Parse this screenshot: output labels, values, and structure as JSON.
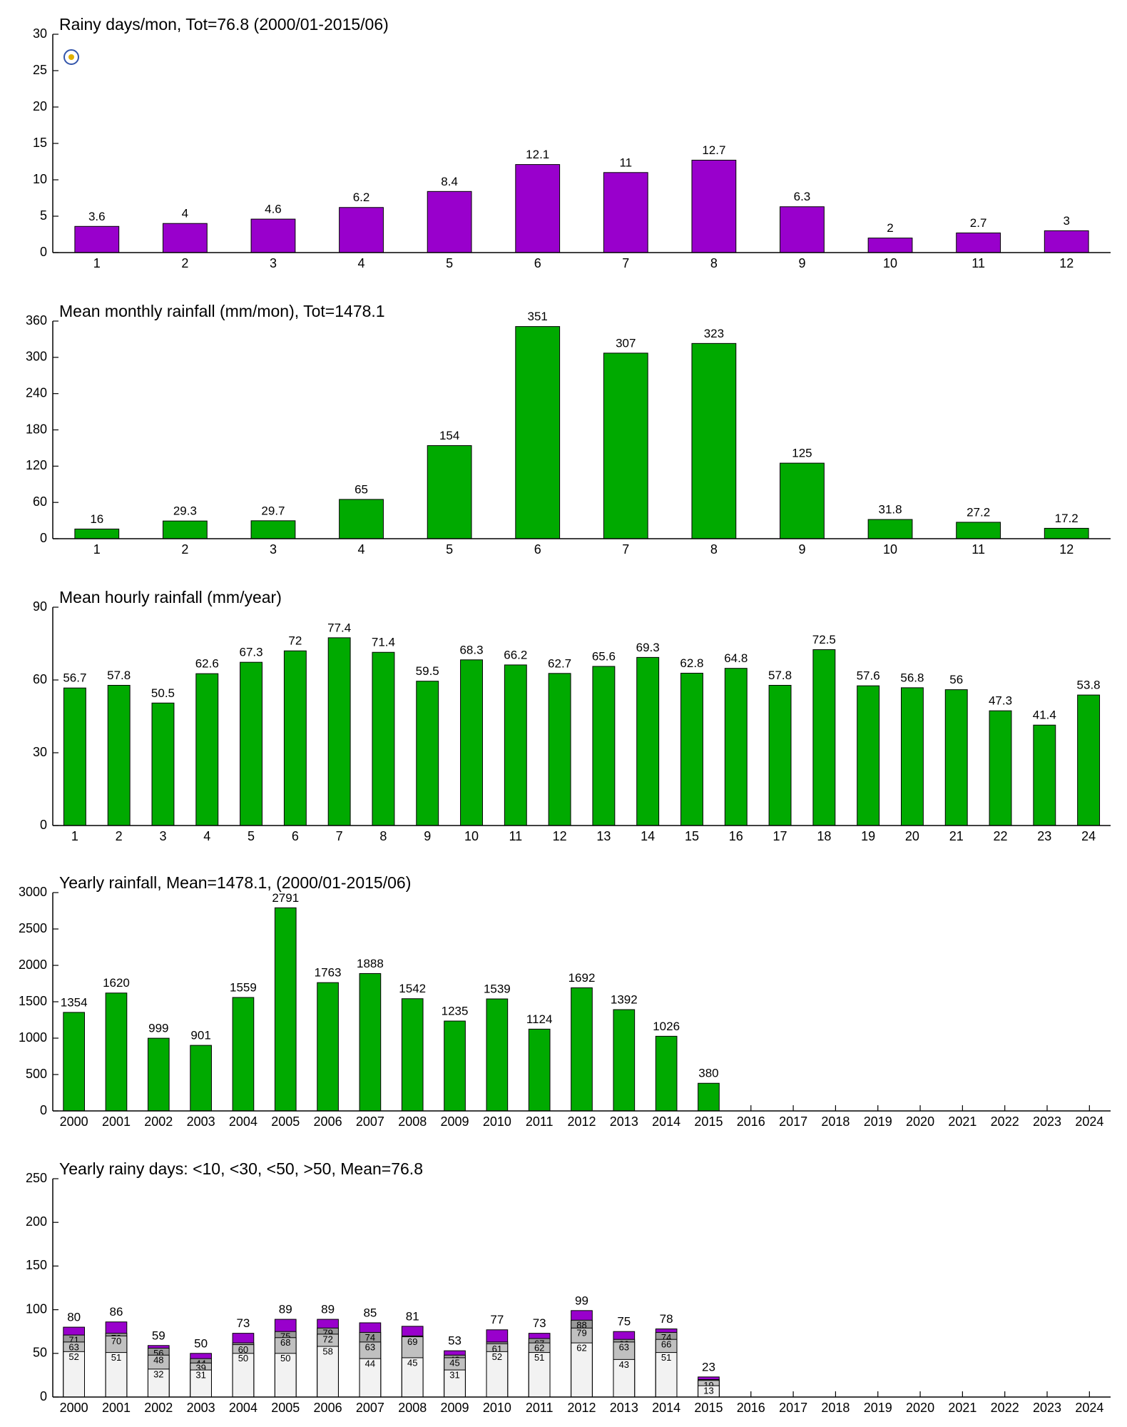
{
  "chart_data": [
    {
      "type": "bar",
      "title": "Rainy days/mon, Tot=76.8 (2000/01-2015/06)",
      "categories": [
        "1",
        "2",
        "3",
        "4",
        "5",
        "6",
        "7",
        "8",
        "9",
        "10",
        "11",
        "12"
      ],
      "values": [
        3.6,
        4,
        4.6,
        6.2,
        8.4,
        12.1,
        11,
        12.7,
        6.3,
        2,
        2.7,
        3
      ],
      "color": "#9900cc",
      "ylim": [
        0,
        30
      ],
      "yticks": [
        0,
        5,
        10,
        15,
        20,
        25,
        30
      ]
    },
    {
      "type": "bar",
      "title": "Mean monthly rainfall (mm/mon), Tot=1478.1",
      "categories": [
        "1",
        "2",
        "3",
        "4",
        "5",
        "6",
        "7",
        "8",
        "9",
        "10",
        "11",
        "12"
      ],
      "values": [
        16,
        29.3,
        29.7,
        65,
        154,
        351,
        307,
        323,
        125,
        31.8,
        27.2,
        17.2
      ],
      "color": "#00aa00",
      "ylim": [
        0,
        360
      ],
      "yticks": [
        0,
        60,
        120,
        180,
        240,
        300,
        360
      ]
    },
    {
      "type": "bar",
      "title": "Mean hourly rainfall (mm/year)",
      "categories": [
        "1",
        "2",
        "3",
        "4",
        "5",
        "6",
        "7",
        "8",
        "9",
        "10",
        "11",
        "12",
        "13",
        "14",
        "15",
        "16",
        "17",
        "18",
        "19",
        "20",
        "21",
        "22",
        "23",
        "24"
      ],
      "values": [
        56.7,
        57.8,
        50.5,
        62.6,
        67.3,
        72,
        77.4,
        71.4,
        59.5,
        68.3,
        66.2,
        62.7,
        65.6,
        69.3,
        62.8,
        64.8,
        57.8,
        72.5,
        57.6,
        56.8,
        56,
        47.3,
        41.4,
        53.8
      ],
      "color": "#00aa00",
      "ylim": [
        0,
        90
      ],
      "yticks": [
        0,
        30,
        60,
        90
      ]
    },
    {
      "type": "bar",
      "title": "Yearly rainfall, Mean=1478.1, (2000/01-2015/06)",
      "categories": [
        "2000",
        "2001",
        "2002",
        "2003",
        "2004",
        "2005",
        "2006",
        "2007",
        "2008",
        "2009",
        "2010",
        "2011",
        "2012",
        "2013",
        "2014",
        "2015",
        "2016",
        "2017",
        "2018",
        "2019",
        "2020",
        "2021",
        "2022",
        "2023",
        "2024"
      ],
      "values": [
        1354,
        1620,
        999,
        901,
        1559,
        2791,
        1763,
        1888,
        1542,
        1235,
        1539,
        1124,
        1692,
        1392,
        1026,
        380,
        null,
        null,
        null,
        null,
        null,
        null,
        null,
        null,
        null
      ],
      "color": "#00aa00",
      "ylim": [
        0,
        3000
      ],
      "yticks": [
        0,
        500,
        1000,
        1500,
        2000,
        2500,
        3000
      ]
    },
    {
      "type": "overlap",
      "title": "Yearly rainy days: <10, <30, <50, >50, Mean=76.8",
      "categories": [
        "2000",
        "2001",
        "2002",
        "2003",
        "2004",
        "2005",
        "2006",
        "2007",
        "2008",
        "2009",
        "2010",
        "2011",
        "2012",
        "2013",
        "2014",
        "2015",
        "2016",
        "2017",
        "2018",
        "2019",
        "2020",
        "2021",
        "2022",
        "2023",
        "2024"
      ],
      "series": [
        {
          "color": "#9900cc",
          "values": [
            80,
            86,
            59,
            50,
            73,
            89,
            89,
            85,
            81,
            53,
            77,
            73,
            99,
            75,
            78,
            23,
            null,
            null,
            null,
            null,
            null,
            null,
            null,
            null,
            null
          ]
        },
        {
          "color": "#999999",
          "values": [
            71,
            73,
            56,
            44,
            62,
            75,
            79,
            74,
            70,
            48,
            63,
            67,
            88,
            66,
            74,
            20,
            null,
            null,
            null,
            null,
            null,
            null,
            null,
            null,
            null
          ]
        },
        {
          "color": "#c0c0c0",
          "values": [
            63,
            70,
            48,
            39,
            60,
            68,
            72,
            63,
            69,
            45,
            61,
            62,
            79,
            63,
            66,
            19,
            null,
            null,
            null,
            null,
            null,
            null,
            null,
            null,
            null
          ]
        },
        {
          "color": "#f2f2f2",
          "values": [
            52,
            51,
            32,
            31,
            50,
            50,
            58,
            44,
            45,
            31,
            52,
            51,
            62,
            43,
            51,
            13,
            null,
            null,
            null,
            null,
            null,
            null,
            null,
            null,
            null
          ]
        }
      ],
      "ylim": [
        0,
        250
      ],
      "yticks": [
        0,
        50,
        100,
        150,
        200,
        250
      ]
    }
  ]
}
